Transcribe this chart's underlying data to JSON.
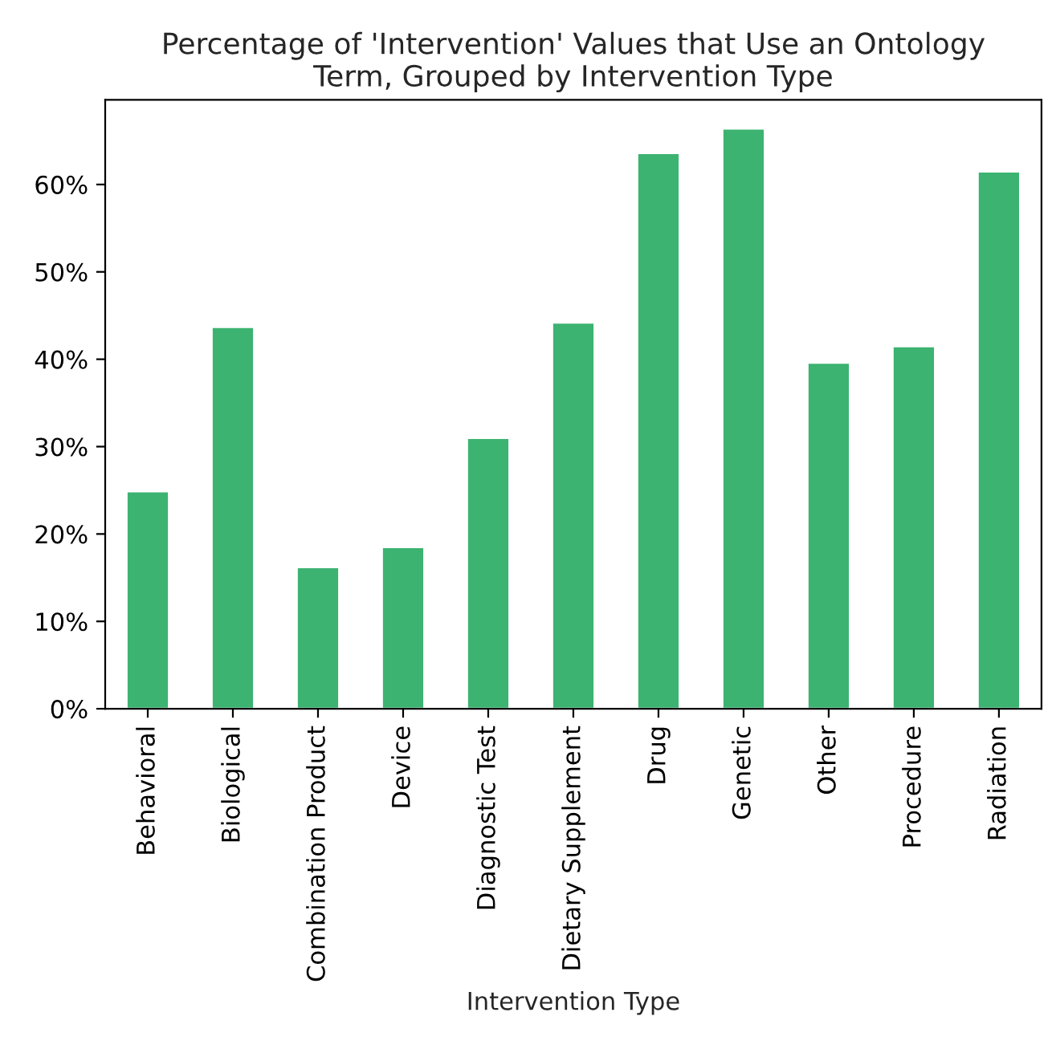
{
  "chart_data": {
    "type": "bar",
    "title": "Percentage of 'Intervention' Values that Use an Ontology\nTerm, Grouped by Intervention Type",
    "xlabel": "Intervention Type",
    "categories": [
      "Behavioral",
      "Biological",
      "Combination Product",
      "Device",
      "Diagnostic Test",
      "Dietary Supplement",
      "Drug",
      "Genetic",
      "Other",
      "Procedure",
      "Radiation"
    ],
    "values": [
      24.9,
      43.7,
      16.2,
      18.5,
      31.0,
      44.2,
      63.6,
      66.4,
      39.6,
      41.5,
      61.5
    ],
    "color": "#3cb371",
    "ylim": [
      0,
      69.7
    ],
    "yticks": [
      {
        "value": 0,
        "label": "0%"
      },
      {
        "value": 10,
        "label": "10%"
      },
      {
        "value": 20,
        "label": "20%"
      },
      {
        "value": 30,
        "label": "30%"
      },
      {
        "value": 40,
        "label": "40%"
      },
      {
        "value": 50,
        "label": "50%"
      },
      {
        "value": 60,
        "label": "60%"
      }
    ],
    "grid": false,
    "legend": false
  }
}
